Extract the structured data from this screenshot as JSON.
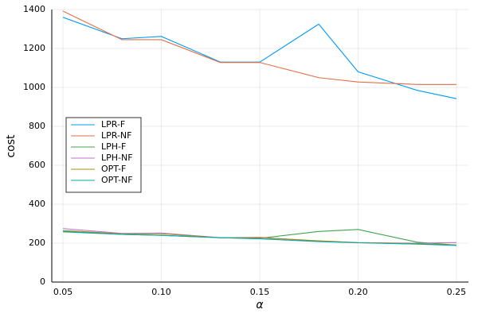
{
  "chart_data": {
    "type": "line",
    "x_label": "α",
    "y_label": "cost",
    "x": [
      0.05,
      0.08,
      0.1,
      0.13,
      0.15,
      0.18,
      0.2,
      0.23,
      0.25
    ],
    "series": [
      {
        "name": "LPR-F",
        "color": "#009afa",
        "values": [
          1360,
          1250,
          1262,
          1130,
          1130,
          1325,
          1080,
          985,
          942
        ]
      },
      {
        "name": "LPR-NF",
        "color": "#e36f47",
        "values": [
          1392,
          1245,
          1245,
          1128,
          1128,
          1050,
          1028,
          1015,
          1015
        ]
      },
      {
        "name": "LPH-F",
        "color": "#3ea44e",
        "values": [
          258,
          245,
          240,
          228,
          225,
          260,
          270,
          205,
          190
        ]
      },
      {
        "name": "LPH-NF",
        "color": "#c371d2",
        "values": [
          275,
          250,
          252,
          228,
          230,
          210,
          202,
          200,
          203
        ]
      },
      {
        "name": "OPT-F",
        "color": "#ac8e18",
        "values": [
          265,
          248,
          248,
          228,
          228,
          212,
          203,
          198,
          190
        ]
      },
      {
        "name": "OPT-NF",
        "color": "#00aaae",
        "values": [
          260,
          245,
          240,
          228,
          222,
          208,
          202,
          195,
          188
        ]
      }
    ],
    "xlim": [
      0.0443,
      0.2561
    ],
    "xticks": [
      0.05,
      {
        "value": 0.1,
        "label": "0.10"
      },
      0.15,
      {
        "value": 0.2,
        "label": "0.20"
      },
      0.25
    ],
    "ylim": [
      0,
      1400
    ],
    "yticks": [
      0,
      200,
      400,
      600,
      800,
      1000,
      1200,
      1400
    ],
    "grid": true,
    "legend": "left"
  }
}
